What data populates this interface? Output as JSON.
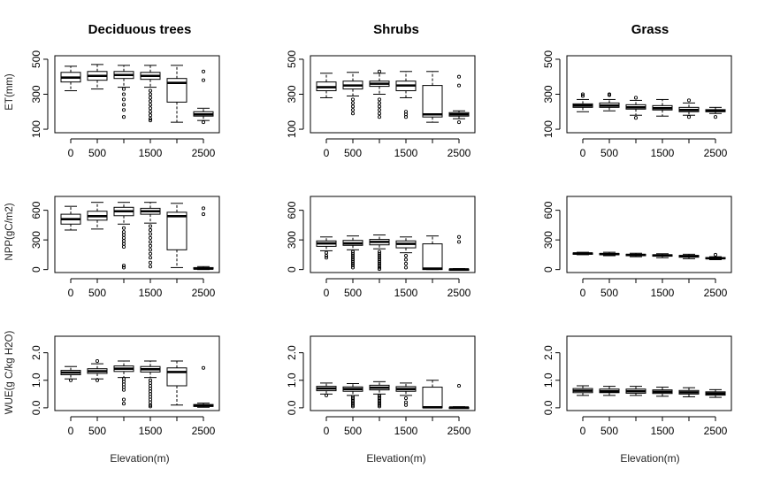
{
  "chart_data": {
    "type": "boxplot-grid",
    "categories": [
      "0",
      "500",
      "1000",
      "1500",
      "2000",
      "2500"
    ],
    "x_tick_labels_shown": [
      "0",
      "500",
      "1500",
      "2500"
    ],
    "columns": [
      "Deciduous trees",
      "Shrubs",
      "Grass"
    ],
    "xlabel": "Elevation(m)",
    "rows": [
      {
        "id": "et",
        "ylabel": "ET(mm)",
        "ylim": [
          80,
          520
        ],
        "yticks": [
          "100",
          "300",
          "500"
        ],
        "ytick_values": [
          100,
          300,
          500
        ],
        "panels": [
          {
            "column": "Deciduous trees",
            "boxes": [
              {
                "category": "0",
                "whislo": 320,
                "q1": 370,
                "med": 395,
                "q3": 425,
                "whishi": 460,
                "fliers": []
              },
              {
                "category": "500",
                "whislo": 330,
                "q1": 380,
                "med": 405,
                "q3": 430,
                "whishi": 470,
                "fliers": []
              },
              {
                "category": "1000",
                "whislo": 340,
                "q1": 390,
                "med": 410,
                "q3": 430,
                "whishi": 465,
                "fliers": [
                  330,
                  300,
                  270,
                  240,
                  210,
                  170
                ]
              },
              {
                "category": "1500",
                "whislo": 340,
                "q1": 385,
                "med": 405,
                "q3": 425,
                "whishi": 465,
                "fliers": [
                  320,
                  300,
                  280,
                  260,
                  240,
                  220,
                  200,
                  180,
                  160,
                  150
                ]
              },
              {
                "category": "2000",
                "whislo": 140,
                "q1": 255,
                "med": 365,
                "q3": 390,
                "whishi": 465,
                "fliers": []
              },
              {
                "category": "2500",
                "whislo": 150,
                "q1": 175,
                "med": 185,
                "q3": 200,
                "whishi": 220,
                "fliers": [
                  430,
                  380,
                  140
                ]
              }
            ]
          },
          {
            "column": "Shrubs",
            "boxes": [
              {
                "category": "0",
                "whislo": 280,
                "q1": 320,
                "med": 340,
                "q3": 370,
                "whishi": 420,
                "fliers": []
              },
              {
                "category": "500",
                "whislo": 290,
                "q1": 330,
                "med": 350,
                "q3": 375,
                "whishi": 425,
                "fliers": [
                  270,
                  250,
                  230,
                  210,
                  190
                ]
              },
              {
                "category": "1000",
                "whislo": 300,
                "q1": 345,
                "med": 360,
                "q3": 375,
                "whishi": 420,
                "fliers": [
                  430,
                  270,
                  250,
                  230,
                  210,
                  190,
                  170
                ]
              },
              {
                "category": "1500",
                "whislo": 280,
                "q1": 320,
                "med": 350,
                "q3": 375,
                "whishi": 430,
                "fliers": [
                  200,
                  185,
                  170
                ]
              },
              {
                "category": "2000",
                "whislo": 140,
                "q1": 170,
                "med": 185,
                "q3": 350,
                "whishi": 430,
                "fliers": []
              },
              {
                "category": "2500",
                "whislo": 160,
                "q1": 175,
                "med": 185,
                "q3": 195,
                "whishi": 205,
                "fliers": [
                  400,
                  350,
                  140
                ]
              }
            ]
          },
          {
            "column": "Grass",
            "boxes": [
              {
                "category": "0",
                "whislo": 200,
                "q1": 225,
                "med": 235,
                "q3": 245,
                "whishi": 270,
                "fliers": [
                  300,
                  290
                ]
              },
              {
                "category": "500",
                "whislo": 205,
                "q1": 225,
                "med": 235,
                "q3": 250,
                "whishi": 270,
                "fliers": [
                  300,
                  295
                ]
              },
              {
                "category": "1000",
                "whislo": 180,
                "q1": 215,
                "med": 225,
                "q3": 240,
                "whishi": 265,
                "fliers": [
                  280,
                  165
                ]
              },
              {
                "category": "1500",
                "whislo": 175,
                "q1": 210,
                "med": 220,
                "q3": 235,
                "whishi": 270,
                "fliers": []
              },
              {
                "category": "2000",
                "whislo": 180,
                "q1": 200,
                "med": 210,
                "q3": 225,
                "whishi": 250,
                "fliers": [
                  265,
                  170
                ]
              },
              {
                "category": "2500",
                "whislo": 190,
                "q1": 200,
                "med": 205,
                "q3": 212,
                "whishi": 225,
                "fliers": [
                  170
                ]
              }
            ]
          }
        ]
      },
      {
        "id": "npp",
        "ylabel": "NPP(gC/m2)",
        "ylim": [
          -30,
          740
        ],
        "yticks": [
          "0",
          "300",
          "600"
        ],
        "ytick_values": [
          0,
          300,
          600
        ],
        "panels": [
          {
            "column": "Deciduous trees",
            "boxes": [
              {
                "category": "0",
                "whislo": 400,
                "q1": 460,
                "med": 510,
                "q3": 560,
                "whishi": 640,
                "fliers": []
              },
              {
                "category": "500",
                "whislo": 410,
                "q1": 500,
                "med": 540,
                "q3": 590,
                "whishi": 680,
                "fliers": []
              },
              {
                "category": "1000",
                "whislo": 460,
                "q1": 545,
                "med": 590,
                "q3": 630,
                "whishi": 680,
                "fliers": [
                  420,
                  380,
                  350,
                  320,
                  290,
                  260,
                  230,
                  40,
                  20
                ]
              },
              {
                "category": "1500",
                "whislo": 470,
                "q1": 560,
                "med": 590,
                "q3": 620,
                "whishi": 680,
                "fliers": [
                  440,
                  400,
                  360,
                  320,
                  280,
                  240,
                  200,
                  160,
                  120,
                  70,
                  30
                ]
              },
              {
                "category": "2000",
                "whislo": 20,
                "q1": 200,
                "med": 540,
                "q3": 580,
                "whishi": 670,
                "fliers": []
              },
              {
                "category": "2500",
                "whislo": 0,
                "q1": 5,
                "med": 10,
                "q3": 20,
                "whishi": 30,
                "fliers": [
                  620,
                  560
                ]
              }
            ]
          },
          {
            "column": "Shrubs",
            "boxes": [
              {
                "category": "0",
                "whislo": 190,
                "q1": 235,
                "med": 265,
                "q3": 290,
                "whishi": 330,
                "fliers": [
                  170,
                  140,
                  120
                ]
              },
              {
                "category": "500",
                "whislo": 200,
                "q1": 245,
                "med": 265,
                "q3": 295,
                "whishi": 340,
                "fliers": [
                  180,
                  160,
                  140,
                  120,
                  100,
                  80,
                  60,
                  40,
                  20
                ]
              },
              {
                "category": "1000",
                "whislo": 210,
                "q1": 250,
                "med": 280,
                "q3": 305,
                "whishi": 350,
                "fliers": [
                  180,
                  160,
                  140,
                  120,
                  100,
                  80,
                  60,
                  40,
                  20,
                  5
                ]
              },
              {
                "category": "1500",
                "whislo": 170,
                "q1": 220,
                "med": 260,
                "q3": 290,
                "whishi": 330,
                "fliers": [
                  140,
                  100,
                  60,
                  20
                ]
              },
              {
                "category": "2000",
                "whislo": 0,
                "q1": 0,
                "med": 10,
                "q3": 260,
                "whishi": 340,
                "fliers": []
              },
              {
                "category": "2500",
                "whislo": 0,
                "q1": 0,
                "med": 2,
                "q3": 5,
                "whishi": 10,
                "fliers": [
                  330,
                  280
                ]
              }
            ]
          },
          {
            "column": "Grass",
            "boxes": [
              {
                "category": "0",
                "whislo": 150,
                "q1": 158,
                "med": 163,
                "q3": 168,
                "whishi": 175,
                "fliers": []
              },
              {
                "category": "500",
                "whislo": 140,
                "q1": 150,
                "med": 157,
                "q3": 163,
                "whishi": 175,
                "fliers": []
              },
              {
                "category": "1000",
                "whislo": 130,
                "q1": 140,
                "med": 147,
                "q3": 155,
                "whishi": 165,
                "fliers": []
              },
              {
                "category": "1500",
                "whislo": 120,
                "q1": 135,
                "med": 143,
                "q3": 150,
                "whishi": 160,
                "fliers": []
              },
              {
                "category": "2000",
                "whislo": 110,
                "q1": 125,
                "med": 135,
                "q3": 143,
                "whishi": 155,
                "fliers": []
              },
              {
                "category": "2500",
                "whislo": 100,
                "q1": 108,
                "med": 115,
                "q3": 122,
                "whishi": 130,
                "fliers": [
                  150
                ]
              }
            ]
          }
        ]
      },
      {
        "id": "wue",
        "ylabel": "WUE(g C/kg H2O)",
        "ylim": [
          -0.1,
          2.6
        ],
        "yticks": [
          "0.0",
          "1.0",
          "2.0"
        ],
        "ytick_values": [
          0.0,
          1.0,
          2.0
        ],
        "panels": [
          {
            "column": "Deciduous trees",
            "boxes": [
              {
                "category": "0",
                "whislo": 1.05,
                "q1": 1.2,
                "med": 1.28,
                "q3": 1.36,
                "whishi": 1.5,
                "fliers": [
                  1.0
                ]
              },
              {
                "category": "500",
                "whislo": 1.05,
                "q1": 1.25,
                "med": 1.33,
                "q3": 1.42,
                "whishi": 1.6,
                "fliers": [
                  1.7,
                  1.0
                ]
              },
              {
                "category": "1000",
                "whislo": 1.1,
                "q1": 1.32,
                "med": 1.42,
                "q3": 1.52,
                "whishi": 1.7,
                "fliers": [
                  1.05,
                  0.95,
                  0.85,
                  0.75,
                  0.65,
                  0.3,
                  0.15
                ]
              },
              {
                "category": "1500",
                "whislo": 1.1,
                "q1": 1.3,
                "med": 1.4,
                "q3": 1.5,
                "whishi": 1.7,
                "fliers": [
                  1.0,
                  0.9,
                  0.8,
                  0.7,
                  0.6,
                  0.5,
                  0.4,
                  0.3,
                  0.2,
                  0.1,
                  0.05
                ]
              },
              {
                "category": "2000",
                "whislo": 0.1,
                "q1": 0.8,
                "med": 1.3,
                "q3": 1.45,
                "whishi": 1.7,
                "fliers": []
              },
              {
                "category": "2500",
                "whislo": 0.02,
                "q1": 0.05,
                "med": 0.08,
                "q3": 0.12,
                "whishi": 0.17,
                "fliers": [
                  1.45
                ]
              }
            ]
          },
          {
            "column": "Shrubs",
            "boxes": [
              {
                "category": "0",
                "whislo": 0.5,
                "q1": 0.62,
                "med": 0.7,
                "q3": 0.78,
                "whishi": 0.9,
                "fliers": [
                  0.45
                ]
              },
              {
                "category": "500",
                "whislo": 0.45,
                "q1": 0.6,
                "med": 0.68,
                "q3": 0.76,
                "whishi": 0.88,
                "fliers": [
                  0.4,
                  0.35,
                  0.3,
                  0.25,
                  0.2,
                  0.15,
                  0.1,
                  0.05
                ]
              },
              {
                "category": "1000",
                "whislo": 0.5,
                "q1": 0.65,
                "med": 0.73,
                "q3": 0.82,
                "whishi": 0.95,
                "fliers": [
                  0.45,
                  0.4,
                  0.35,
                  0.3,
                  0.25,
                  0.2,
                  0.15,
                  0.1,
                  0.05
                ]
              },
              {
                "category": "1500",
                "whislo": 0.45,
                "q1": 0.6,
                "med": 0.68,
                "q3": 0.77,
                "whishi": 0.9,
                "fliers": [
                  0.35,
                  0.2,
                  0.1
                ]
              },
              {
                "category": "2000",
                "whislo": 0.0,
                "q1": 0.0,
                "med": 0.02,
                "q3": 0.75,
                "whishi": 1.0,
                "fliers": []
              },
              {
                "category": "2500",
                "whislo": 0.0,
                "q1": 0.0,
                "med": 0.01,
                "q3": 0.02,
                "whishi": 0.04,
                "fliers": [
                  0.8
                ]
              }
            ]
          },
          {
            "column": "Grass",
            "boxes": [
              {
                "category": "0",
                "whislo": 0.45,
                "q1": 0.55,
                "med": 0.62,
                "q3": 0.7,
                "whishi": 0.8,
                "fliers": []
              },
              {
                "category": "500",
                "whislo": 0.45,
                "q1": 0.55,
                "med": 0.6,
                "q3": 0.68,
                "whishi": 0.78,
                "fliers": []
              },
              {
                "category": "1000",
                "whislo": 0.45,
                "q1": 0.53,
                "med": 0.6,
                "q3": 0.68,
                "whishi": 0.78,
                "fliers": []
              },
              {
                "category": "1500",
                "whislo": 0.42,
                "q1": 0.52,
                "med": 0.58,
                "q3": 0.65,
                "whishi": 0.75,
                "fliers": []
              },
              {
                "category": "2000",
                "whislo": 0.4,
                "q1": 0.5,
                "med": 0.56,
                "q3": 0.63,
                "whishi": 0.73,
                "fliers": []
              },
              {
                "category": "2500",
                "whislo": 0.38,
                "q1": 0.46,
                "med": 0.52,
                "q3": 0.58,
                "whishi": 0.66,
                "fliers": []
              }
            ]
          }
        ]
      }
    ]
  }
}
